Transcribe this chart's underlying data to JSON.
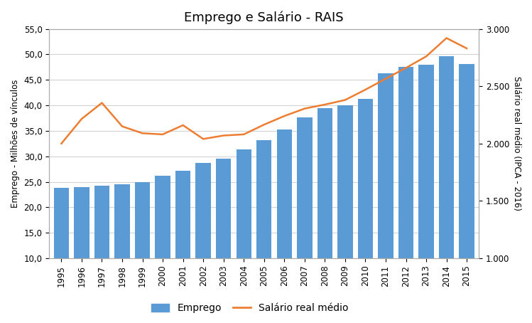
{
  "title": "Emprego e Salário - RAIS",
  "years": [
    1995,
    1996,
    1997,
    1998,
    1999,
    2000,
    2001,
    2002,
    2003,
    2004,
    2005,
    2006,
    2007,
    2008,
    2009,
    2010,
    2011,
    2012,
    2013,
    2014,
    2015
  ],
  "emprego": [
    23.8,
    23.9,
    24.2,
    24.5,
    25.0,
    26.2,
    27.2,
    28.7,
    29.5,
    31.4,
    33.2,
    35.2,
    37.6,
    39.4,
    40.0,
    41.2,
    46.3,
    47.5,
    48.0,
    49.6,
    48.1
  ],
  "salario": [
    2000,
    2215,
    2355,
    2150,
    2090,
    2080,
    2160,
    2040,
    2070,
    2080,
    2165,
    2240,
    2305,
    2340,
    2380,
    2470,
    2565,
    2660,
    2760,
    2920,
    2830
  ],
  "bar_color": "#5B9BD5",
  "line_color": "#ED7D31",
  "ylabel_left": "Emprego - Milhões de vínculos",
  "ylabel_right": "Salário real médio (IPCA - 2016)",
  "legend_emprego": "Emprego",
  "legend_salario": "Salário real médio",
  "ylim_left": [
    10.0,
    55.0
  ],
  "ylim_right": [
    1000,
    3000
  ],
  "yticks_left": [
    10.0,
    15.0,
    20.0,
    25.0,
    30.0,
    35.0,
    40.0,
    45.0,
    50.0,
    55.0
  ],
  "yticks_right": [
    1000,
    1500,
    2000,
    2500,
    3000
  ],
  "ytick_labels_right": [
    "1.000",
    "1.500",
    "2.000",
    "2.500",
    "3.000"
  ],
  "ytick_labels_left": [
    "10,0",
    "15,0",
    "20,0",
    "25,0",
    "30,0",
    "35,0",
    "40,0",
    "45,0",
    "50,0",
    "55,0"
  ],
  "background_color": "#FFFFFF",
  "plot_bg_color": "#FFFFFF",
  "grid_color": "#D3D3D3",
  "title_fontsize": 13,
  "axis_label_fontsize": 8.5,
  "tick_fontsize": 8.5,
  "legend_fontsize": 10
}
